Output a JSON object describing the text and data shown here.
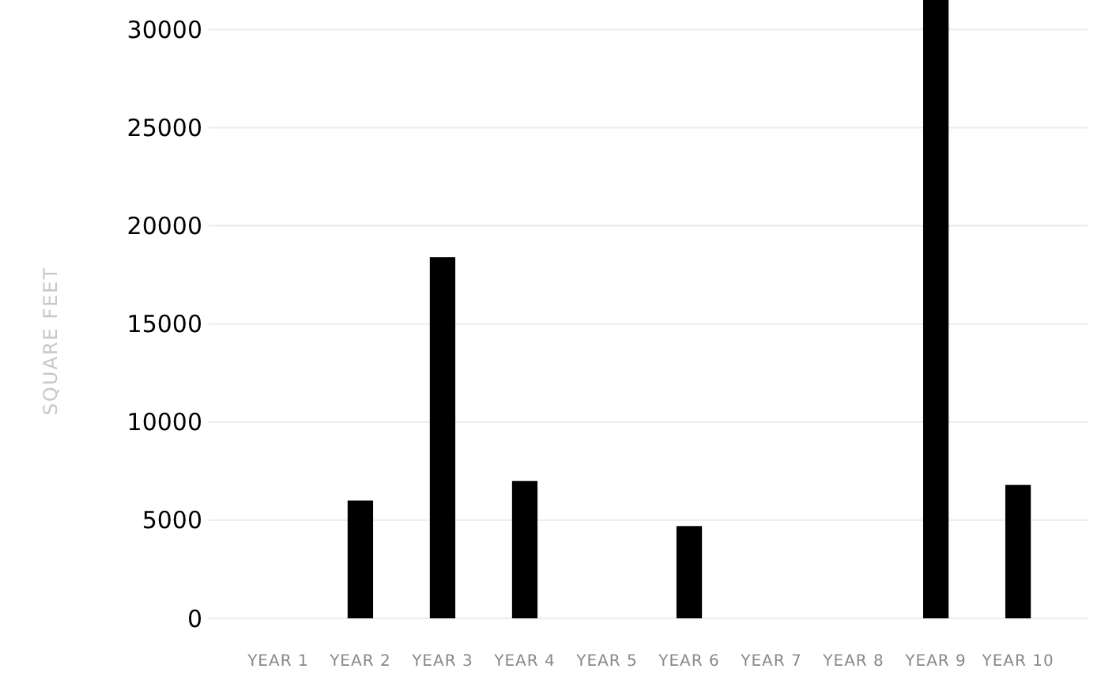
{
  "chart_data": {
    "type": "bar",
    "ylabel": "SQUARE FEET",
    "categories": [
      "YEAR 1",
      "YEAR 2",
      "YEAR 3",
      "YEAR 4",
      "YEAR 5",
      "YEAR 6",
      "YEAR 7",
      "YEAR 8",
      "YEAR 9",
      "YEAR 10"
    ],
    "values": [
      0,
      6000,
      18400,
      7000,
      0,
      4700,
      0,
      0,
      31500,
      6800
    ],
    "color": "#000000",
    "ylim": [
      0,
      31500
    ],
    "yticks": [
      0,
      5000,
      10000,
      15000,
      20000,
      25000,
      30000
    ],
    "grid": "y"
  }
}
